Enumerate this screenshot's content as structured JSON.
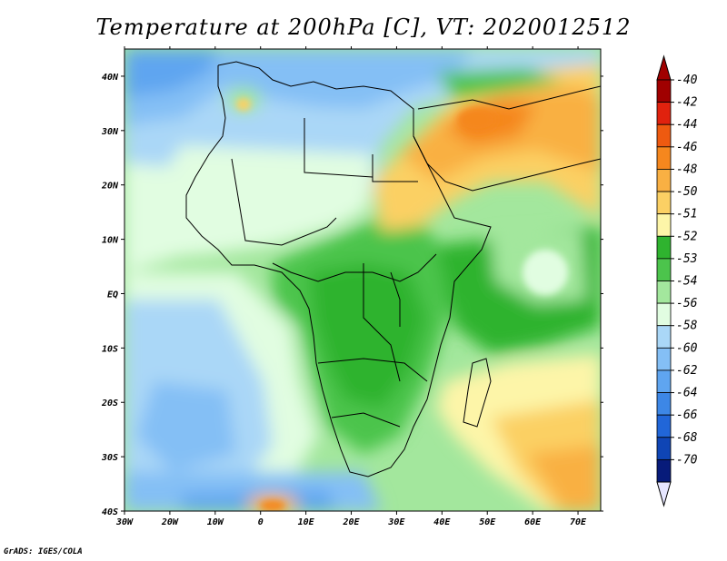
{
  "title": "Temperature at 200hPa [C], VT: 2020012512",
  "credit": "GrADS: IGES/COLA",
  "map": {
    "lon_range": [
      -30,
      75
    ],
    "lat_range": [
      -40,
      45
    ],
    "lon_ticks": [
      "30W",
      "20W",
      "10W",
      "0",
      "10E",
      "20E",
      "30E",
      "40E",
      "50E",
      "60E",
      "70E"
    ],
    "lat_ticks": [
      "40N",
      "30N",
      "20N",
      "10N",
      "EQ",
      "10S",
      "20S",
      "30S",
      "40S"
    ]
  },
  "colorbar": {
    "labels": [
      "-40",
      "-42",
      "-44",
      "-46",
      "-48",
      "-50",
      "-51",
      "-52",
      "-53",
      "-54",
      "-56",
      "-58",
      "-60",
      "-62",
      "-64",
      "-66",
      "-68",
      "-70"
    ],
    "colors": [
      "#a00000",
      "#e0220e",
      "#ee5a10",
      "#f5871e",
      "#f9b043",
      "#fbd064",
      "#fdf5a8",
      "#2fb32f",
      "#4cc44c",
      "#a3e79d",
      "#e1fde1",
      "#aad7f7",
      "#84bff5",
      "#5fa5f0",
      "#3d87e6",
      "#2166d8",
      "#0f45b5",
      "#071b7a"
    ],
    "top_arrow_color": "#a00000",
    "bottom_arrow_color": "#e6e6ff"
  }
}
